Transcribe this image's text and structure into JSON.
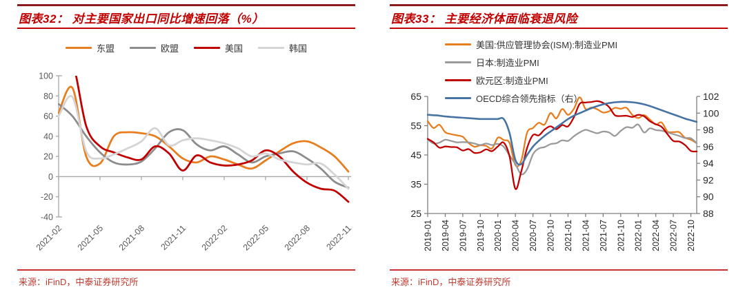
{
  "panels": {
    "left": {
      "title": "图表32： 对主要国家出口同比增速回落（%）",
      "source": "来源：iFinD，中泰证券研究所"
    },
    "right": {
      "title": "图表33： 主要经济体面临衰退风险",
      "source": "来源：iFinD，中泰证券研究所"
    }
  },
  "colors": {
    "title_red": "#C00000",
    "top_bar": "#8B1A1A",
    "rule_red": "#C53030",
    "source_red": "#C03A30",
    "axis_gray_left_chart": "#A6A6A6",
    "axis_gray_right_chart": "#7F7F7F",
    "tick_label_left_chart": "#595959",
    "tick_label_right_chart": "#262626"
  },
  "chart_data": [
    {
      "id": "export-growth",
      "type": "line",
      "title": "对主要国家出口同比增速回落（%）",
      "xlabel": "",
      "ylabel": "",
      "grid": false,
      "legend_position": "top",
      "smooth": true,
      "ylim": [
        -40,
        100
      ],
      "y_ticks": [
        100,
        80,
        60,
        40,
        20,
        0,
        -20,
        -40
      ],
      "x_axis_at_value": 0,
      "x": [
        "2021-02",
        "2021-03",
        "2021-04",
        "2021-05",
        "2021-06",
        "2021-07",
        "2021-08",
        "2021-09",
        "2021-10",
        "2021-11",
        "2021-12",
        "2022-01",
        "2022-02",
        "2022-03",
        "2022-04",
        "2022-05",
        "2022-06",
        "2022-07",
        "2022-08",
        "2022-09",
        "2022-10",
        "2022-11"
      ],
      "x_tick_indices": [
        0,
        3,
        6,
        9,
        12,
        15,
        18,
        21
      ],
      "x_tick_labels": [
        "2021-02",
        "2021-05",
        "2021-08",
        "2021-11",
        "2022-02",
        "2022-05",
        "2022-08",
        "2022-11"
      ],
      "series": [
        {
          "name": "东盟",
          "color": "#E87D1E",
          "width": 2.8,
          "values": [
            63,
            88,
            20,
            13,
            40,
            44,
            43,
            40,
            30,
            18,
            14,
            20,
            17,
            12,
            8,
            16,
            25,
            33,
            35,
            29,
            20,
            5
          ]
        },
        {
          "name": "欧盟",
          "color": "#8C8C8C",
          "width": 2.8,
          "values": [
            72,
            60,
            40,
            24,
            14,
            12,
            15,
            28,
            44,
            46,
            32,
            26,
            30,
            22,
            14,
            20,
            23,
            25,
            18,
            8,
            -5,
            -11
          ]
        },
        {
          "name": "美国",
          "color": "#C00000",
          "width": 2.8,
          "values": [
            110,
            113,
            50,
            30,
            24,
            19,
            17,
            30,
            23,
            6,
            21,
            14,
            11,
            12,
            16,
            26,
            20,
            5,
            -6,
            -12,
            -14,
            -25
          ]
        },
        {
          "name": "韩国",
          "color": "#D5D3D3",
          "width": 2.8,
          "values": [
            60,
            79,
            25,
            18,
            22,
            28,
            35,
            48,
            31,
            36,
            38,
            36,
            33,
            28,
            20,
            23,
            17,
            14,
            12,
            13,
            2,
            -12
          ]
        }
      ]
    },
    {
      "id": "recession-risk-pmi",
      "type": "line",
      "title": "主要经济体面临衰退风险",
      "xlabel": "",
      "ylabel": "",
      "grid": false,
      "legend_position": "top",
      "smooth": true,
      "ylim_left": [
        25,
        65
      ],
      "y_ticks_left": [
        65,
        55,
        45,
        35,
        25
      ],
      "ylim_right": [
        88,
        102
      ],
      "y_ticks_right": [
        102,
        100,
        98,
        96,
        94,
        92,
        90,
        88
      ],
      "x": [
        "2019-01",
        "2019-02",
        "2019-03",
        "2019-04",
        "2019-05",
        "2019-06",
        "2019-07",
        "2019-08",
        "2019-09",
        "2019-10",
        "2019-11",
        "2019-12",
        "2020-01",
        "2020-02",
        "2020-03",
        "2020-04",
        "2020-05",
        "2020-06",
        "2020-07",
        "2020-08",
        "2020-09",
        "2020-10",
        "2020-11",
        "2020-12",
        "2021-01",
        "2021-02",
        "2021-03",
        "2021-04",
        "2021-05",
        "2021-06",
        "2021-07",
        "2021-08",
        "2021-09",
        "2021-10",
        "2021-11",
        "2021-12",
        "2022-01",
        "2022-02",
        "2022-03",
        "2022-04",
        "2022-05",
        "2022-06",
        "2022-07",
        "2022-08",
        "2022-09",
        "2022-10",
        "2022-11"
      ],
      "x_tick_indices": [
        0,
        3,
        6,
        9,
        12,
        15,
        18,
        21,
        24,
        27,
        30,
        33,
        36,
        39,
        42,
        45
      ],
      "x_tick_labels": [
        "2019-01",
        "2019-04",
        "2019-07",
        "2019-10",
        "2020-01",
        "2020-04",
        "2020-07",
        "2020-10",
        "2021-01",
        "2021-04",
        "2021-07",
        "2021-10",
        "2022-01",
        "2022-04",
        "2022-07",
        "2022-10"
      ],
      "series": [
        {
          "name": "美国:供应管理协会(ISM):制造业PMI",
          "color": "#E87D1E",
          "axis": "left",
          "width": 2.3,
          "values": [
            56.6,
            54.2,
            55.3,
            52.8,
            52.1,
            51.7,
            51.2,
            49.1,
            47.8,
            48.3,
            48.1,
            47.2,
            50.9,
            50.1,
            49.1,
            41.5,
            43.1,
            52.6,
            54.2,
            56.0,
            55.4,
            59.3,
            57.5,
            60.7,
            58.7,
            60.8,
            64.7,
            60.7,
            61.2,
            60.6,
            59.5,
            59.9,
            61.1,
            60.8,
            61.1,
            58.7,
            57.6,
            58.6,
            57.1,
            55.4,
            56.1,
            53.0,
            52.8,
            52.8,
            50.9,
            50.2,
            49.0
          ]
        },
        {
          "name": "日本:制造业PMI",
          "color": "#9A9A9A",
          "axis": "left",
          "width": 2.3,
          "values": [
            50.3,
            48.9,
            49.2,
            50.2,
            49.8,
            49.3,
            49.4,
            49.3,
            48.9,
            48.4,
            48.9,
            48.4,
            48.8,
            47.8,
            44.8,
            41.9,
            38.4,
            40.1,
            45.2,
            47.2,
            47.7,
            48.7,
            49.0,
            50.0,
            49.8,
            51.4,
            52.7,
            53.6,
            53.0,
            52.4,
            53.0,
            52.7,
            51.5,
            53.2,
            54.5,
            54.3,
            55.4,
            52.7,
            54.1,
            53.5,
            53.3,
            52.7,
            52.1,
            51.5,
            50.8,
            50.7,
            49.0
          ]
        },
        {
          "name": "欧元区:制造业PMI",
          "color": "#C00000",
          "axis": "left",
          "width": 2.3,
          "values": [
            50.5,
            49.3,
            47.5,
            47.9,
            47.7,
            47.6,
            46.5,
            47.0,
            45.7,
            45.9,
            46.9,
            46.3,
            47.9,
            49.2,
            44.5,
            33.4,
            39.4,
            47.4,
            51.8,
            51.7,
            53.7,
            54.8,
            53.8,
            55.2,
            54.8,
            57.9,
            62.5,
            62.9,
            63.1,
            63.4,
            62.8,
            61.4,
            58.6,
            58.3,
            58.4,
            58.0,
            58.7,
            58.2,
            56.5,
            55.5,
            54.6,
            52.1,
            49.8,
            49.6,
            48.4,
            46.4,
            46.2
          ]
        },
        {
          "name": "OECD综合领先指标（右）",
          "color": "#4673A3",
          "axis": "right",
          "width": 2.6,
          "values": [
            99.8,
            99.75,
            99.7,
            99.6,
            99.55,
            99.5,
            99.45,
            99.4,
            99.35,
            99.3,
            99.3,
            99.3,
            99.3,
            99.3,
            97.6,
            94.4,
            93.9,
            95.0,
            96.0,
            96.7,
            97.3,
            97.8,
            98.3,
            98.8,
            99.3,
            99.7,
            100.0,
            100.3,
            100.6,
            100.85,
            101.05,
            101.2,
            101.3,
            101.35,
            101.35,
            101.3,
            101.2,
            101.05,
            100.85,
            100.6,
            100.35,
            100.1,
            99.85,
            99.6,
            99.35,
            99.15,
            98.95
          ]
        }
      ]
    }
  ]
}
